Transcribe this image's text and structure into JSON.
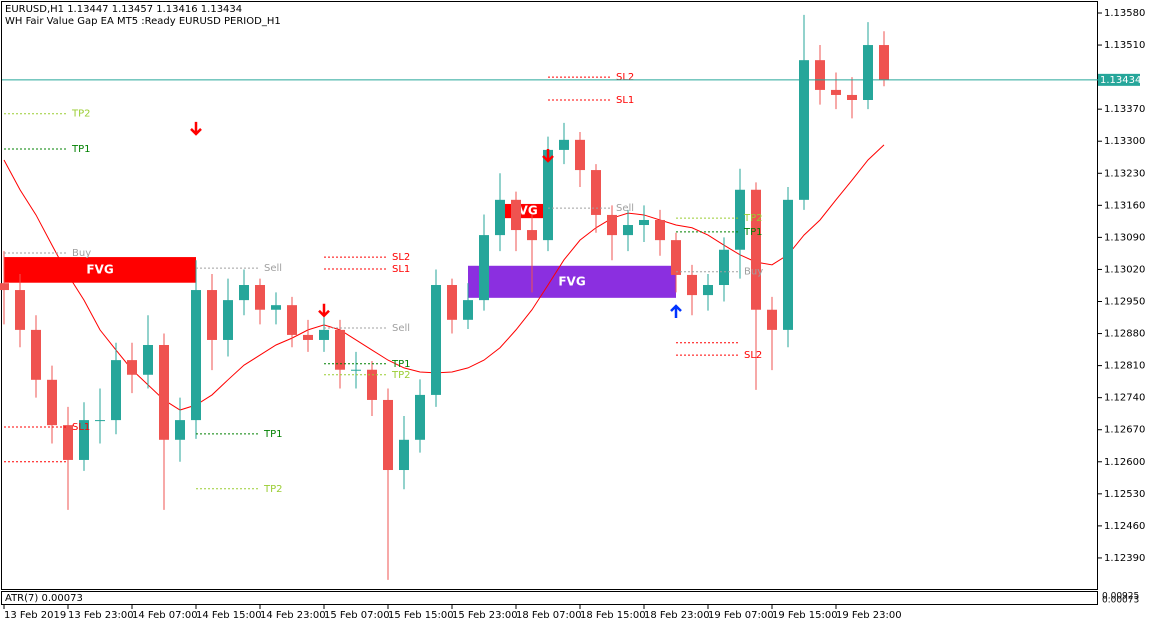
{
  "header": {
    "symbol_line": "EURUSD,H1  1.13447 1.13457 1.13416 1.13434",
    "ea_line": "WH Fair Value Gap EA MT5 :Ready EURUSD PERIOD_H1"
  },
  "chart_data": {
    "type": "candlestick",
    "categories": [
      "13 Feb 2019",
      null,
      null,
      null,
      "13 Feb 23:00",
      null,
      null,
      null,
      "14 Feb 07:00",
      null,
      null,
      null,
      "14 Feb 15:00",
      null,
      null,
      null,
      "14 Feb 23:00",
      null,
      null,
      null,
      "15 Feb 07:00",
      null,
      null,
      null,
      "15 Feb 15:00",
      null,
      null,
      null,
      "15 Feb 23:00",
      null,
      null,
      null,
      "18 Feb 07:00",
      null,
      null,
      null,
      "18 Feb 15:00",
      null,
      null,
      null,
      "18 Feb 23:00",
      null,
      null,
      null,
      "19 Feb 07:00",
      null,
      null,
      null,
      "19 Feb 15:00",
      null,
      null,
      null,
      "19 Feb 23:00",
      null,
      null,
      null
    ],
    "open": [
      1.1299,
      1.12975,
      1.12888,
      1.12779,
      1.1268,
      1.12604,
      1.12691,
      1.12691,
      1.12822,
      1.1279,
      1.12855,
      1.12648,
      1.12691,
      1.12975,
      1.12866,
      1.12953,
      1.12986,
      1.12932,
      1.12942,
      1.12877,
      1.12866,
      1.12888,
      1.12801,
      1.12801,
      1.12735,
      1.12582,
      1.12648,
      1.12746,
      1.12986,
      1.1291,
      1.12953,
      1.13095,
      1.13172,
      1.13106,
      1.13084,
      1.13281,
      1.13303,
      1.13237,
      1.13139,
      1.13095,
      1.13117,
      1.13128,
      1.13084,
      1.13008,
      1.12964,
      1.12986,
      1.13063,
      1.13194,
      1.12932,
      1.12888,
      1.13172,
      1.13477,
      1.13412,
      1.13401,
      1.1339,
      1.1351
    ],
    "high": [
      1.1306,
      1.1301,
      1.1292,
      1.1281,
      1.1272,
      1.1273,
      1.1276,
      1.1286,
      1.1286,
      1.1292,
      1.1288,
      1.1274,
      1.1304,
      1.1301,
      1.13,
      1.1302,
      1.13,
      1.1297,
      1.1296,
      1.1291,
      1.1292,
      1.1291,
      1.1284,
      1.1282,
      1.1276,
      1.127,
      1.1278,
      1.1302,
      1.13,
      1.1299,
      1.1314,
      1.1323,
      1.1319,
      1.1314,
      1.1331,
      1.1334,
      1.1332,
      1.1325,
      1.1316,
      1.1315,
      1.1316,
      1.1315,
      1.131,
      1.1303,
      1.1301,
      1.1309,
      1.1324,
      1.1321,
      1.1296,
      1.132,
      1.13576,
      1.1351,
      1.1345,
      1.1344,
      1.1356,
      1.1354
    ],
    "low": [
      1.129,
      1.1285,
      1.1274,
      1.1264,
      1.12495,
      1.1258,
      1.1264,
      1.1266,
      1.1275,
      1.1276,
      1.12495,
      1.126,
      1.1265,
      1.128,
      1.1283,
      1.1292,
      1.129,
      1.129,
      1.1285,
      1.1284,
      1.1284,
      1.1276,
      1.1276,
      1.127,
      1.12342,
      1.1254,
      1.1262,
      1.1272,
      1.1288,
      1.1289,
      1.1293,
      1.1306,
      1.1306,
      1.1297,
      1.1306,
      1.1325,
      1.132,
      1.131,
      1.1304,
      1.1306,
      1.1308,
      1.1305,
      1.1297,
      1.1292,
      1.1293,
      1.1295,
      1.13,
      1.12757,
      1.128,
      1.1285,
      1.1315,
      1.1338,
      1.1337,
      1.1335,
      1.1337,
      1.1342
    ],
    "close": [
      1.12975,
      1.12888,
      1.12779,
      1.1268,
      1.12604,
      1.12691,
      1.12691,
      1.12822,
      1.1279,
      1.12855,
      1.12648,
      1.12691,
      1.12975,
      1.12866,
      1.12953,
      1.12986,
      1.12932,
      1.12942,
      1.12877,
      1.12866,
      1.12888,
      1.12801,
      1.12801,
      1.12735,
      1.12582,
      1.12648,
      1.12746,
      1.12986,
      1.1291,
      1.12953,
      1.13095,
      1.13172,
      1.13106,
      1.13084,
      1.13281,
      1.13303,
      1.13237,
      1.13139,
      1.13095,
      1.13117,
      1.13128,
      1.13084,
      1.13008,
      1.12964,
      1.12986,
      1.13063,
      1.13194,
      1.12932,
      1.12888,
      1.13172,
      1.13477,
      1.13412,
      1.13401,
      1.1339,
      1.1351,
      1.13434
    ],
    "up_color": "#26a69a",
    "down_color": "#ef5350",
    "ma": {
      "color": "#ff0000",
      "values": [
        1.13259,
        1.13194,
        1.13139,
        1.13073,
        1.13008,
        1.12953,
        1.12888,
        1.12844,
        1.12801,
        1.12768,
        1.12735,
        1.12713,
        1.12724,
        1.12746,
        1.12779,
        1.12811,
        1.12833,
        1.12855,
        1.1287,
        1.12888,
        1.12899,
        1.12888,
        1.12866,
        1.12844,
        1.12822,
        1.12805,
        1.12796,
        1.12794,
        1.12796,
        1.12805,
        1.12822,
        1.12849,
        1.12888,
        1.12932,
        1.12986,
        1.13041,
        1.13084,
        1.13111,
        1.13132,
        1.13143,
        1.13139,
        1.13128,
        1.13117,
        1.13111,
        1.13095,
        1.13073,
        1.13052,
        1.13036,
        1.1303,
        1.13052,
        1.13095,
        1.13128,
        1.13172,
        1.13215,
        1.13259,
        1.13292
      ]
    },
    "ylim": [
      1.1232,
      1.13604
    ],
    "yticks": [
      {
        "value": 1.1239,
        "label": "1.12390"
      },
      {
        "value": 1.1246,
        "label": "1.12460"
      },
      {
        "value": 1.1253,
        "label": "1.12530"
      },
      {
        "value": 1.126,
        "label": "1.12600"
      },
      {
        "value": 1.1267,
        "label": "1.12670"
      },
      {
        "value": 1.1274,
        "label": "1.12740"
      },
      {
        "value": 1.1281,
        "label": "1.12810"
      },
      {
        "value": 1.1288,
        "label": "1.12880"
      },
      {
        "value": 1.1295,
        "label": "1.12950"
      },
      {
        "value": 1.1302,
        "label": "1.13020"
      },
      {
        "value": 1.1309,
        "label": "1.13090"
      },
      {
        "value": 1.1316,
        "label": "1.13160"
      },
      {
        "value": 1.1323,
        "label": "1.13230"
      },
      {
        "value": 1.133,
        "label": "1.13300"
      },
      {
        "value": 1.1337,
        "label": "1.13370"
      },
      {
        "value": 1.1351,
        "label": "1.13510"
      },
      {
        "value": 1.1358,
        "label": "1.13580"
      }
    ],
    "current_price": 1.13434,
    "current_price_color": "#26a69a",
    "zones": [
      {
        "label": "FVG",
        "from": 0,
        "to": 12,
        "top": 1.13047,
        "bottom": 1.12991,
        "color": "#ff0000"
      },
      {
        "label": "FVG",
        "from": 31,
        "to": 34,
        "top": 1.13163,
        "bottom": 1.13132,
        "color": "#ff0000"
      },
      {
        "label": "FVG",
        "from": 29,
        "to": 42,
        "top": 1.13028,
        "bottom": 1.12958,
        "color": "#8b2fe0"
      }
    ],
    "levels": [
      {
        "label": "TP2",
        "price": 1.1336,
        "from": 0,
        "to": 4,
        "color": "#9acd32"
      },
      {
        "label": "TP1",
        "price": 1.13283,
        "from": 0,
        "to": 4,
        "color": "#008000"
      },
      {
        "label": "Buy",
        "price": 1.13056,
        "from": 0,
        "to": 4,
        "color": "#a0a0a0"
      },
      {
        "label": "SL1",
        "price": 1.12676,
        "from": 0,
        "to": 4,
        "color": "#ff0000"
      },
      {
        "price": 1.126,
        "from": 0,
        "to": 4,
        "color": "#ff0000"
      },
      {
        "label": "Sell",
        "price": 1.13023,
        "from": 12,
        "to": 16,
        "color": "#a0a0a0"
      },
      {
        "label": "TP1",
        "price": 1.12661,
        "from": 12,
        "to": 16,
        "color": "#008000"
      },
      {
        "label": "TP2",
        "price": 1.12541,
        "from": 12,
        "to": 16,
        "color": "#9acd32"
      },
      {
        "label": "SL2",
        "price": 1.13047,
        "from": 20,
        "to": 24,
        "color": "#ff0000"
      },
      {
        "label": "SL1",
        "price": 1.13021,
        "from": 20,
        "to": 24,
        "color": "#ff0000"
      },
      {
        "label": "Sell",
        "price": 1.12892,
        "from": 20,
        "to": 24,
        "color": "#a0a0a0"
      },
      {
        "label": "TP1",
        "price": 1.12814,
        "from": 20,
        "to": 24,
        "color": "#008000"
      },
      {
        "label": "TP2",
        "price": 1.1279,
        "from": 20,
        "to": 24,
        "color": "#9acd32"
      },
      {
        "label": "SL2",
        "price": 1.1344,
        "from": 34,
        "to": 38,
        "color": "#ff0000"
      },
      {
        "label": "SL1",
        "price": 1.1339,
        "from": 34,
        "to": 38,
        "color": "#ff0000"
      },
      {
        "label": "Sell",
        "price": 1.13154,
        "from": 34,
        "to": 38,
        "color": "#a0a0a0"
      },
      {
        "label": "TP2",
        "price": 1.13132,
        "from": 42,
        "to": 46,
        "color": "#9acd32"
      },
      {
        "label": "TP1",
        "price": 1.13102,
        "from": 42,
        "to": 46,
        "color": "#008000"
      },
      {
        "label": "Buy",
        "price": 1.13015,
        "from": 42,
        "to": 46,
        "color": "#a0a0a0"
      },
      {
        "price": 1.1286,
        "from": 42,
        "to": 46,
        "color": "#ff0000"
      },
      {
        "label": "SL2",
        "price": 1.12833,
        "from": 42,
        "to": 46,
        "color": "#ff0000"
      }
    ],
    "signals": [
      {
        "index": 12,
        "price": 1.13329,
        "direction": "down",
        "color": "#ff0000"
      },
      {
        "index": 20,
        "price": 1.12932,
        "direction": "down",
        "color": "#ff0000"
      },
      {
        "index": 34,
        "price": 1.1327,
        "direction": "down",
        "color": "#ff0000"
      },
      {
        "index": 42,
        "price": 1.12927,
        "direction": "up",
        "color": "#0033ff"
      }
    ],
    "atr_label": "ATR(7) 0.00073",
    "atr_ticks": [
      "0.00925",
      "0.00073"
    ]
  }
}
